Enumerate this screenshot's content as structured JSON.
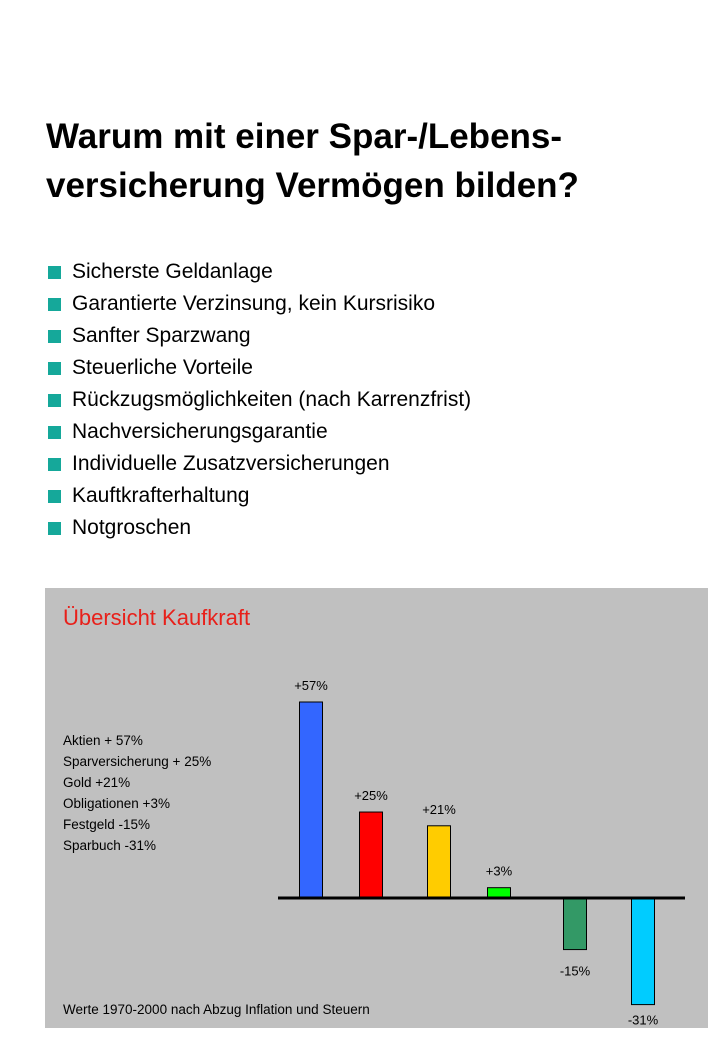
{
  "title": [
    "Warum mit einer Spar-/Lebens-",
    "versicherung Vermögen bilden?"
  ],
  "bullets": [
    "Sicherste Geldanlage",
    "Garantierte Verzinsung, kein Kursrisiko",
    "Sanfter Sparzwang",
    "Steuerliche Vorteile",
    "Rückzugsmöglichkeiten (nach Karrenzfrist)",
    "Nachversicherungsgarantie",
    "Individuelle Zusatzversicherungen",
    "Kauftkrafterhaltung",
    "Notgroschen"
  ],
  "colors": {
    "bullet": "#15a89a",
    "panel_bg": "#c0c0c0",
    "panel_title": "#e8201a"
  },
  "chart_data": {
    "type": "bar",
    "title": "Übersicht Kaufkraft",
    "legend": [
      "Aktien + 57%",
      "Sparversicherung  + 25%",
      "Gold +21%",
      "Obligationen +3%",
      "Festgeld -15%",
      "Sparbuch  -31%"
    ],
    "footnote": "Werte 1970-2000  nach Abzug  Inflation und Steuern",
    "values": [
      57,
      25,
      21,
      3,
      -15,
      -31
    ],
    "labels": [
      "+57%",
      "+25%",
      "+21%",
      "+3%",
      "-15%",
      "-31%"
    ],
    "colors": [
      "#3366ff",
      "#ff0000",
      "#ffcc00",
      "#00ff00",
      "#339966",
      "#00ccff"
    ]
  }
}
